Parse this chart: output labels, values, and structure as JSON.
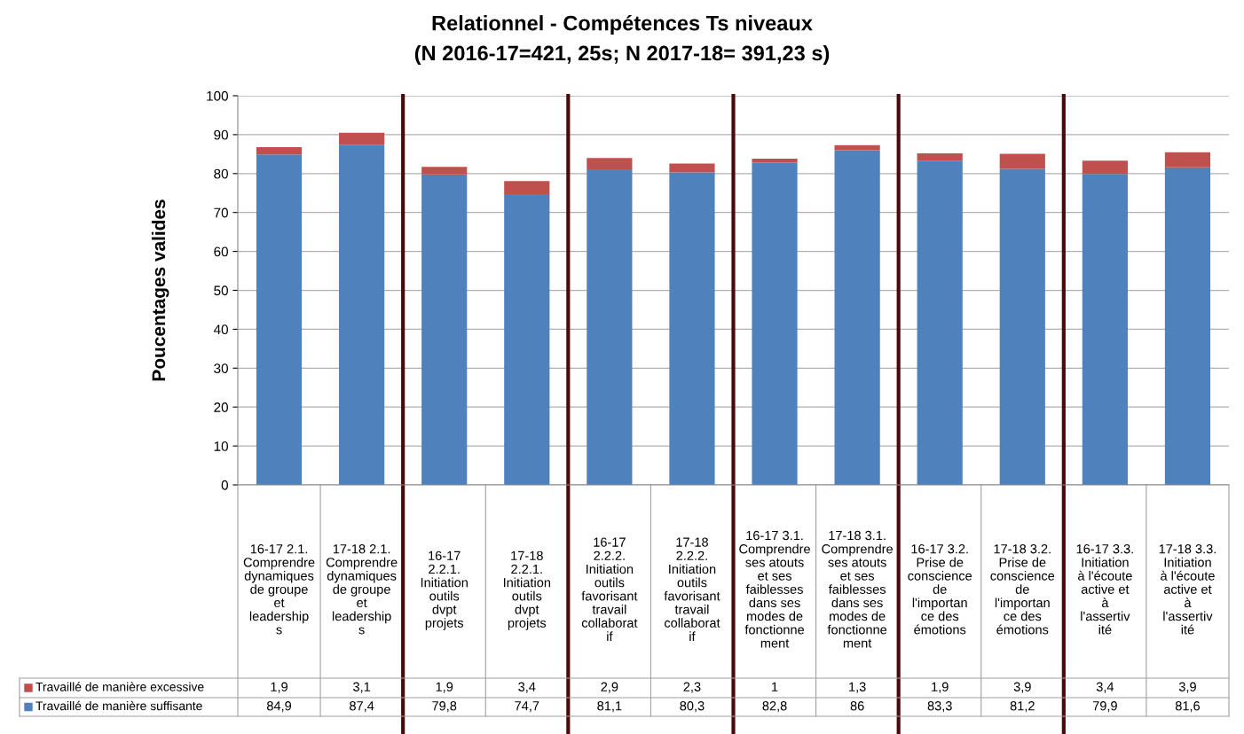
{
  "chart_data": {
    "type": "bar",
    "stacked": true,
    "title": "Relationnel - Compétences Ts niveaux",
    "subtitle": "(N 2016-17=421, 25s; N 2017-18= 391,23 s)",
    "ylabel": "Poucentages valides",
    "categories": [
      "16-17 2.1. Comprendre dynamiques de groupe et leaderships",
      "17-18 2.1. Comprendre dynamiques de groupe et leaderships",
      "16-17 2.2.1. Initiation outils dvpt projets",
      "17-18 2.2.1. Initiation outils dvpt projets",
      "16-17 2.2.2. Initiation outils favorisant travail collaboratif",
      "17-18 2.2.2. Initiation outils favorisant travail collaboratif",
      "16-17 3.1. Comprendre ses atouts et ses faiblesses dans ses modes de fonctionnement",
      "17-18 3.1. Comprendre ses atouts et ses faiblesses dans ses modes de fonctionnement",
      "16-17 3.2. Prise de conscience de l'importance des émotions",
      "17-18 3.2. Prise de conscience de l'importance des émotions",
      "16-17 3.3. Initiation à l'écoute active et à l'assertivité",
      "17-18 3.3. Initiation à l'écoute active et à l'assertivité"
    ],
    "series": [
      {
        "name": "Travaillé de manière suffisante",
        "color": "#4f81bd",
        "values": [
          84.9,
          87.4,
          79.8,
          74.7,
          81.1,
          80.3,
          82.8,
          86,
          83.3,
          81.2,
          79.9,
          81.6
        ],
        "value_labels": [
          "84,9",
          "87,4",
          "79,8",
          "74,7",
          "81,1",
          "80,3",
          "82,8",
          "86",
          "83,3",
          "81,2",
          "79,9",
          "81,6"
        ]
      },
      {
        "name": "Travaillé de manière excessive",
        "color": "#c0504d",
        "values": [
          1.9,
          3.1,
          1.9,
          3.4,
          2.9,
          2.3,
          1,
          1.3,
          1.9,
          3.9,
          3.4,
          3.9
        ],
        "value_labels": [
          "1,9",
          "3,1",
          "1,9",
          "3,4",
          "2,9",
          "2,3",
          "1",
          "1,3",
          "1,9",
          "3,9",
          "3,4",
          "3,9"
        ]
      }
    ],
    "ylim": [
      0,
      100
    ],
    "yticks": [
      0,
      10,
      20,
      30,
      40,
      50,
      60,
      70,
      80,
      90,
      100
    ],
    "grid": "y",
    "legend": "bottom"
  }
}
